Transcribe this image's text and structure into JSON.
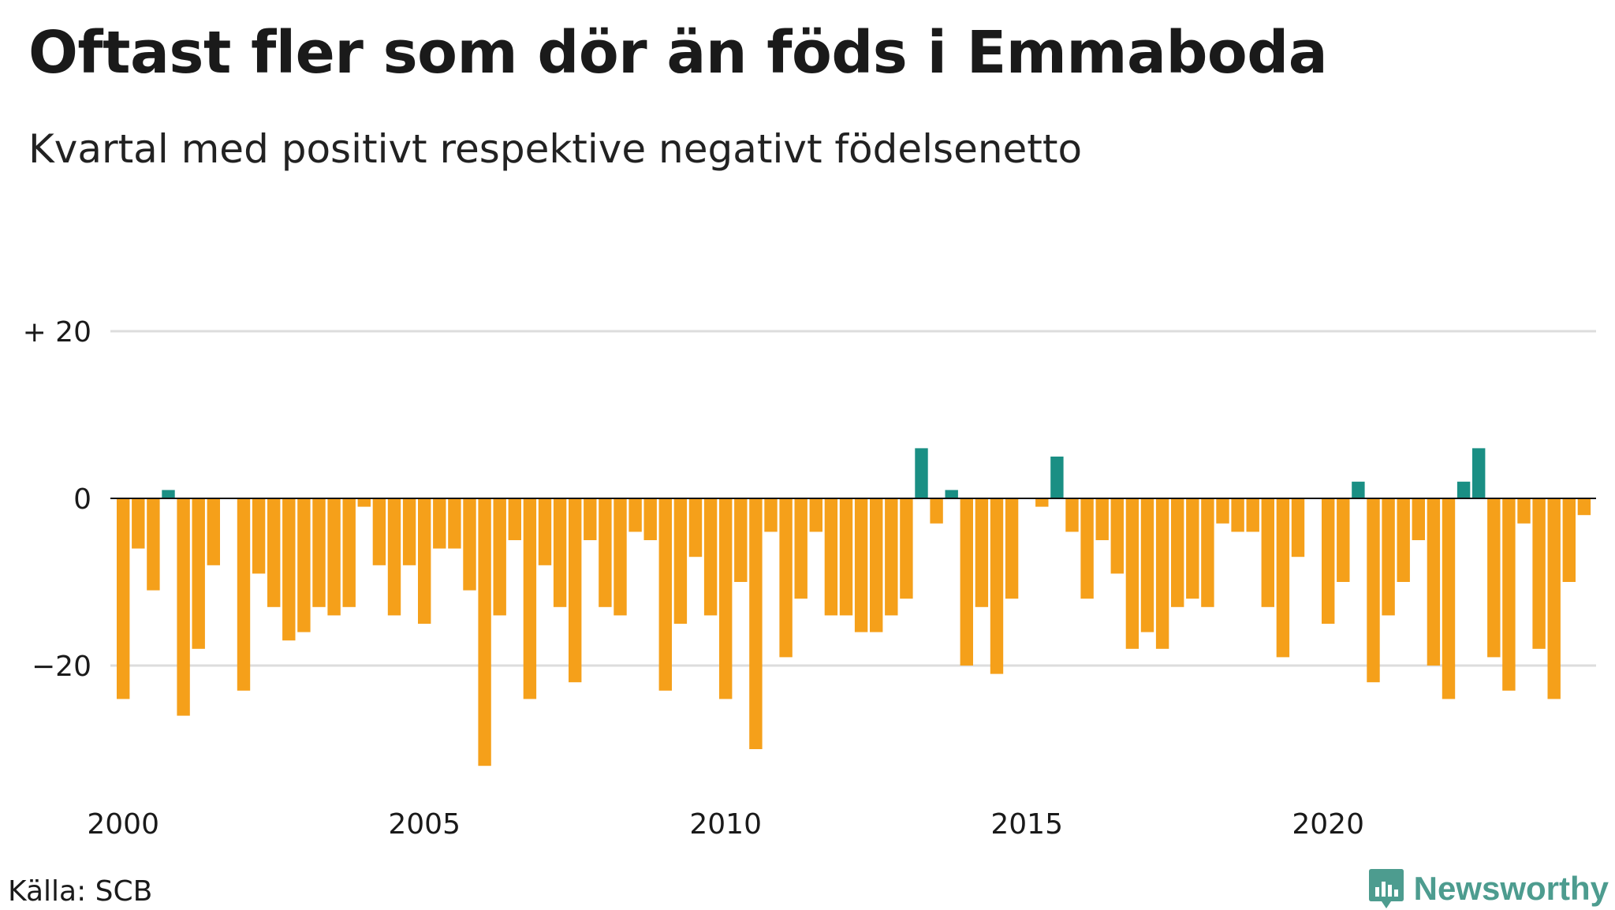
{
  "title": "Oftast fler som dör än föds i Emmaboda",
  "subtitle": "Kvartal med positivt respektive negativt födelsenetto",
  "source": "Källa: SCB",
  "brand": "Newsworthy",
  "colors": {
    "positive": "#1a8f84",
    "negative": "#f5a01a",
    "grid": "#dddddd",
    "zero_line": "#111111",
    "brand": "#4d9c8f"
  },
  "icons": {
    "logo": "bar-chart-badge-icon"
  },
  "chart_data": {
    "type": "bar",
    "title": "Oftast fler som dör än föds i Emmaboda",
    "subtitle": "Kvartal med positivt respektive negativt födelsenetto",
    "xlabel": "",
    "ylabel": "",
    "ylim": [
      -34,
      30
    ],
    "grid": true,
    "y_ticks": [
      {
        "value": 20,
        "label": "+ 20"
      },
      {
        "value": 0,
        "label": "0"
      },
      {
        "value": -20,
        "label": "−20"
      }
    ],
    "x_ticks": [
      {
        "year": 2000,
        "label": "2000"
      },
      {
        "year": 2005,
        "label": "2005"
      },
      {
        "year": 2010,
        "label": "2010"
      },
      {
        "year": 2015,
        "label": "2015"
      },
      {
        "year": 2020,
        "label": "2020"
      }
    ],
    "start": "2000 Q1",
    "frequency": "quarter",
    "values": [
      -24,
      -6,
      -11,
      1,
      -26,
      -18,
      -8,
      0,
      -23,
      -9,
      -13,
      -17,
      -16,
      -13,
      -14,
      -13,
      -1,
      -8,
      -14,
      -8,
      -15,
      -6,
      -6,
      -11,
      -32,
      -14,
      -5,
      -24,
      -8,
      -13,
      -22,
      -5,
      -13,
      -14,
      -4,
      -5,
      -23,
      -15,
      -7,
      -14,
      -24,
      -10,
      -30,
      -4,
      -19,
      -12,
      -4,
      -14,
      -14,
      -16,
      -16,
      -14,
      -12,
      6,
      -3,
      1,
      -20,
      -13,
      -21,
      -12,
      0,
      -1,
      5,
      -4,
      -12,
      -5,
      -9,
      -18,
      -16,
      -18,
      -13,
      -12,
      -13,
      -3,
      -4,
      -4,
      -13,
      -19,
      -7,
      0,
      -15,
      -10,
      2,
      -22,
      -14,
      -10,
      -5,
      -20,
      -24,
      2,
      6,
      -19,
      -23,
      -3,
      -18,
      -24,
      -10,
      -2
    ]
  }
}
